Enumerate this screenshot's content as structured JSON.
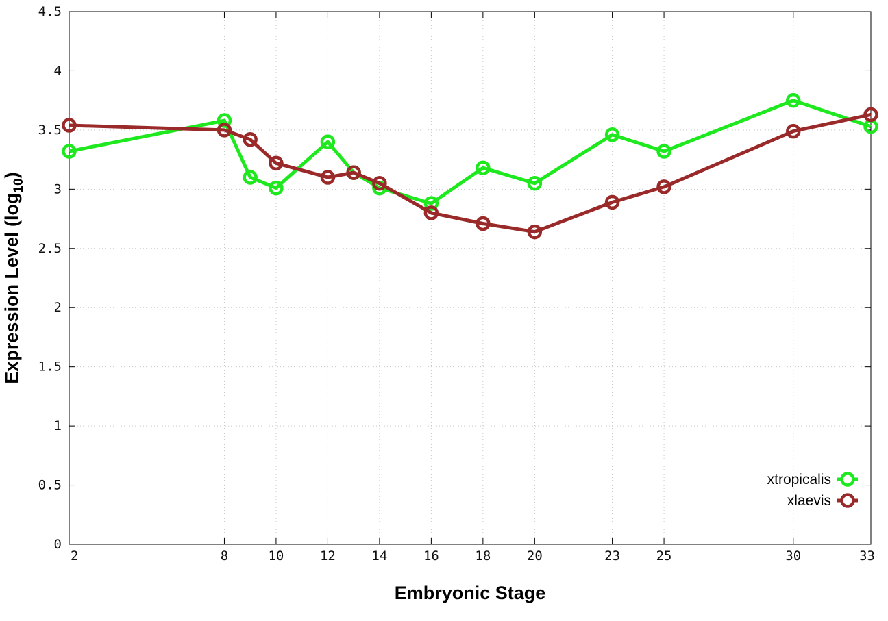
{
  "chart_data": {
    "type": "line",
    "xlabel": "Embryonic Stage",
    "ylabel": "Expression Level (log",
    "ylabel_sub": "10",
    "ylabel_end": ")",
    "xlim": [
      2,
      33
    ],
    "ylim": [
      0,
      4.5
    ],
    "x_ticks": [
      2,
      8,
      10,
      12,
      14,
      16,
      18,
      20,
      23,
      25,
      30,
      33
    ],
    "y_ticks": [
      0,
      0.5,
      1,
      1.5,
      2,
      2.5,
      3,
      3.5,
      4,
      4.5
    ],
    "y_tick_labels": [
      "0",
      "0.5",
      "1",
      "1.5",
      "2",
      "2.5",
      "3",
      "3.5",
      "4",
      "4.5"
    ],
    "grid": true,
    "legend_position": "bottom-right",
    "series": [
      {
        "name": "xtropicalis",
        "color": "#1ee81e",
        "x": [
          2,
          8,
          9,
          10,
          12,
          13,
          14,
          16,
          18,
          20,
          23,
          25,
          30,
          33
        ],
        "values": [
          3.32,
          3.58,
          3.1,
          3.01,
          3.4,
          3.14,
          3.01,
          2.88,
          3.18,
          3.05,
          3.46,
          3.32,
          3.75,
          3.53
        ]
      },
      {
        "name": "xlaevis",
        "color": "#9a2a2a",
        "x": [
          2,
          8,
          9,
          10,
          12,
          13,
          14,
          16,
          18,
          20,
          23,
          25,
          30,
          33
        ],
        "values": [
          3.54,
          3.5,
          3.42,
          3.22,
          3.1,
          3.14,
          3.05,
          2.8,
          2.71,
          2.64,
          2.89,
          3.02,
          3.49,
          3.63
        ]
      }
    ]
  }
}
